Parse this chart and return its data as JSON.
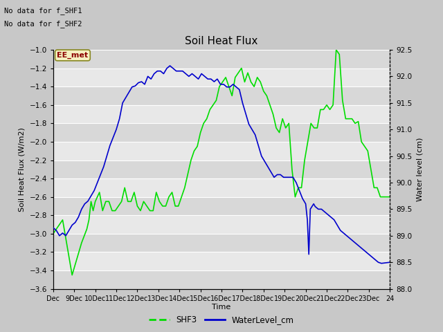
{
  "title": "Soil Heat Flux",
  "ylabel_left": "Soil Heat Flux (W/m2)",
  "ylabel_right": "Water level (cm)",
  "xlabel": "Time",
  "no_data_text1": "No data for f_SHF1",
  "no_data_text2": "No data for f_SHF2",
  "ee_met_label": "EE_met",
  "ylim_left": [
    -3.6,
    -1.0
  ],
  "ylim_right": [
    88.0,
    92.5
  ],
  "yticks_left": [
    -3.6,
    -3.4,
    -3.2,
    -3.0,
    -2.8,
    -2.6,
    -2.4,
    -2.2,
    -2.0,
    -1.8,
    -1.6,
    -1.4,
    -1.2,
    -1.0
  ],
  "yticks_right": [
    88.0,
    88.5,
    89.0,
    89.5,
    90.0,
    90.5,
    91.0,
    91.5,
    92.0,
    92.5
  ],
  "xtick_labels": [
    "Dec",
    "9Dec",
    "10Dec",
    "11Dec",
    "12Dec",
    "13Dec",
    "14Dec",
    "15Dec",
    "16Dec",
    "17Dec",
    "18Dec",
    "19Dec",
    "20Dec",
    "21Dec",
    "22Dec",
    "23Dec",
    "24"
  ],
  "shf3_color": "#00dd00",
  "water_color": "#0000cc",
  "fig_bg_color": "#c8c8c8",
  "plot_bg_color_dark": "#d8d8d8",
  "plot_bg_color_light": "#e8e8e8",
  "legend_shf3": "SHF3",
  "legend_water": "WaterLevel_cm",
  "xlim": [
    0,
    16
  ],
  "shf3_x": [
    0,
    0.45,
    0.9,
    1.35,
    1.6,
    1.7,
    1.8,
    1.9,
    2.0,
    2.1,
    2.2,
    2.35,
    2.5,
    2.65,
    2.8,
    2.95,
    3.1,
    3.25,
    3.4,
    3.55,
    3.7,
    3.85,
    4.0,
    4.15,
    4.3,
    4.45,
    4.6,
    4.75,
    4.9,
    5.05,
    5.2,
    5.35,
    5.5,
    5.65,
    5.8,
    5.95,
    6.1,
    6.25,
    6.4,
    6.55,
    6.7,
    6.85,
    7.0,
    7.15,
    7.3,
    7.45,
    7.6,
    7.75,
    7.9,
    8.05,
    8.2,
    8.35,
    8.5,
    8.65,
    8.8,
    8.95,
    9.1,
    9.25,
    9.4,
    9.55,
    9.7,
    9.85,
    10.0,
    10.15,
    10.3,
    10.45,
    10.6,
    10.75,
    10.9,
    11.05,
    11.2,
    11.35,
    11.5,
    11.65,
    11.8,
    11.95,
    12.1,
    12.25,
    12.4,
    12.55,
    12.7,
    12.85,
    13.0,
    13.15,
    13.3,
    13.45,
    13.6,
    13.75,
    13.9,
    14.05,
    14.2,
    14.35,
    14.5,
    14.65,
    14.8,
    14.95,
    15.1,
    15.25,
    15.4,
    15.55,
    15.7,
    15.85,
    16.0
  ],
  "shf3_y": [
    -3.0,
    -2.85,
    -3.45,
    -3.1,
    -2.95,
    -2.85,
    -2.65,
    -2.75,
    -2.65,
    -2.6,
    -2.55,
    -2.75,
    -2.65,
    -2.65,
    -2.75,
    -2.75,
    -2.7,
    -2.65,
    -2.5,
    -2.65,
    -2.65,
    -2.55,
    -2.7,
    -2.75,
    -2.65,
    -2.7,
    -2.75,
    -2.75,
    -2.55,
    -2.65,
    -2.7,
    -2.7,
    -2.6,
    -2.55,
    -2.7,
    -2.7,
    -2.6,
    -2.5,
    -2.35,
    -2.2,
    -2.1,
    -2.05,
    -1.9,
    -1.8,
    -1.75,
    -1.65,
    -1.6,
    -1.55,
    -1.4,
    -1.35,
    -1.3,
    -1.4,
    -1.5,
    -1.3,
    -1.25,
    -1.2,
    -1.35,
    -1.25,
    -1.35,
    -1.4,
    -1.3,
    -1.35,
    -1.45,
    -1.5,
    -1.6,
    -1.7,
    -1.85,
    -1.9,
    -1.75,
    -1.85,
    -1.8,
    -2.3,
    -2.6,
    -2.5,
    -2.5,
    -2.2,
    -2.0,
    -1.8,
    -1.85,
    -1.85,
    -1.65,
    -1.65,
    -1.6,
    -1.65,
    -1.6,
    -1.0,
    -1.05,
    -1.55,
    -1.75,
    -1.75,
    -1.75,
    -1.8,
    -1.78,
    -2.0,
    -2.05,
    -2.1,
    -2.3,
    -2.5,
    -2.5,
    -2.6,
    -2.6,
    -2.6,
    -2.6
  ],
  "water_x": [
    0,
    0.15,
    0.3,
    0.45,
    0.6,
    0.75,
    0.9,
    1.05,
    1.2,
    1.35,
    1.5,
    1.65,
    1.8,
    1.95,
    2.1,
    2.25,
    2.4,
    2.55,
    2.7,
    2.85,
    3.0,
    3.15,
    3.3,
    3.45,
    3.6,
    3.75,
    3.9,
    4.05,
    4.2,
    4.35,
    4.5,
    4.65,
    4.8,
    4.95,
    5.1,
    5.25,
    5.4,
    5.55,
    5.7,
    5.85,
    6.0,
    6.15,
    6.3,
    6.45,
    6.6,
    6.75,
    6.9,
    7.05,
    7.2,
    7.35,
    7.5,
    7.65,
    7.8,
    7.95,
    8.1,
    8.25,
    8.4,
    8.55,
    8.7,
    8.85,
    9.0,
    9.15,
    9.3,
    9.45,
    9.6,
    9.75,
    9.9,
    10.05,
    10.2,
    10.35,
    10.5,
    10.65,
    10.8,
    10.95,
    11.1,
    11.25,
    11.4,
    11.55,
    11.7,
    11.85,
    12.0,
    12.08,
    12.15,
    12.22,
    12.3,
    12.38,
    12.45,
    12.6,
    12.75,
    12.9,
    13.05,
    13.2,
    13.35,
    13.5,
    13.65,
    13.8,
    13.95,
    14.1,
    14.25,
    14.4,
    14.55,
    14.7,
    14.85,
    15.0,
    15.15,
    15.3,
    15.45,
    15.6,
    16.0
  ],
  "water_y": [
    89.15,
    89.1,
    89.0,
    89.05,
    89.0,
    89.1,
    89.2,
    89.25,
    89.35,
    89.5,
    89.6,
    89.65,
    89.75,
    89.85,
    90.0,
    90.15,
    90.3,
    90.5,
    90.7,
    90.85,
    91.0,
    91.2,
    91.5,
    91.6,
    91.7,
    91.8,
    91.82,
    91.88,
    91.9,
    91.85,
    92.0,
    91.95,
    92.05,
    92.1,
    92.1,
    92.05,
    92.15,
    92.2,
    92.15,
    92.1,
    92.1,
    92.1,
    92.05,
    92.0,
    92.05,
    92.0,
    91.95,
    92.05,
    92.0,
    91.95,
    91.95,
    91.9,
    91.95,
    91.85,
    91.85,
    91.8,
    91.8,
    91.85,
    91.8,
    91.75,
    91.5,
    91.3,
    91.1,
    91.0,
    90.9,
    90.7,
    90.5,
    90.4,
    90.3,
    90.2,
    90.1,
    90.15,
    90.15,
    90.1,
    90.1,
    90.1,
    90.1,
    90.0,
    89.85,
    89.7,
    89.6,
    89.3,
    88.65,
    89.5,
    89.55,
    89.6,
    89.55,
    89.5,
    89.5,
    89.45,
    89.4,
    89.35,
    89.3,
    89.2,
    89.1,
    89.05,
    89.0,
    88.95,
    88.9,
    88.85,
    88.8,
    88.75,
    88.7,
    88.65,
    88.6,
    88.55,
    88.5,
    88.48,
    88.5
  ]
}
